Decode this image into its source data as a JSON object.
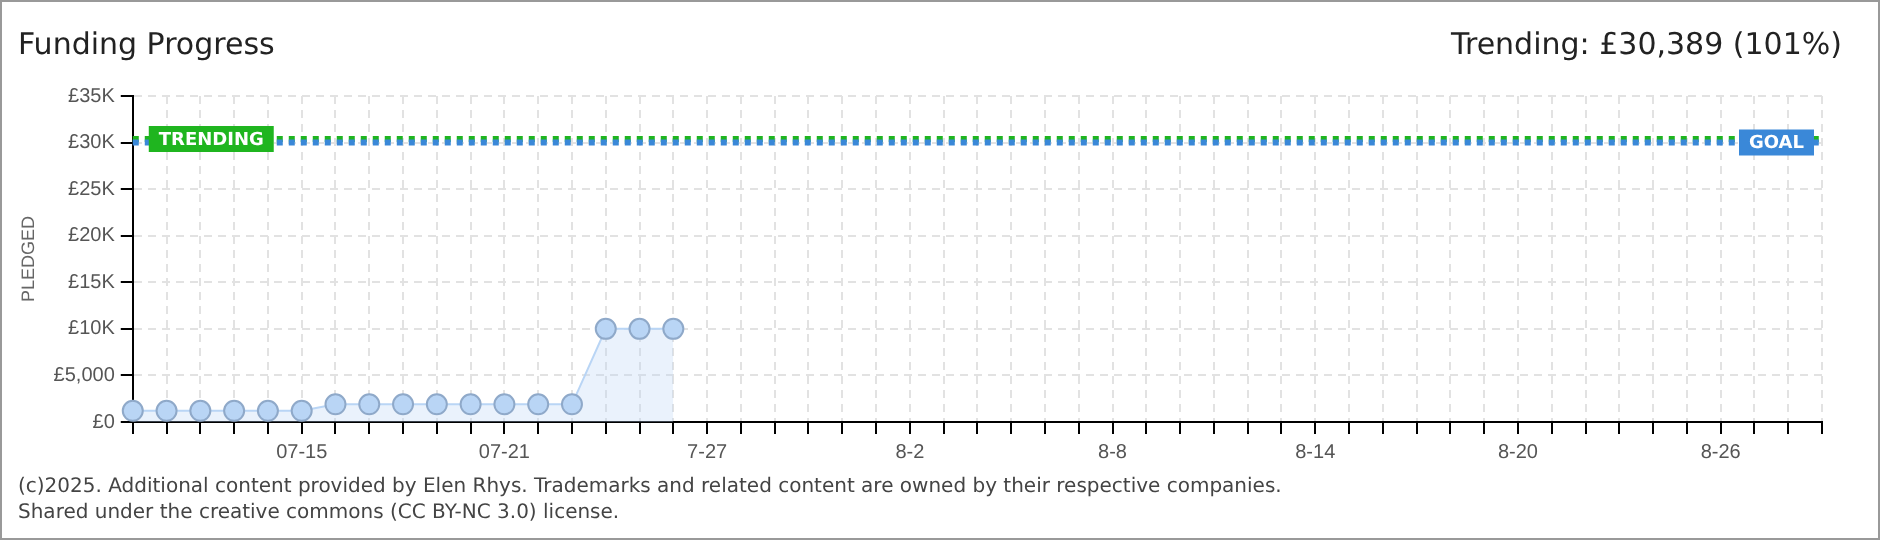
{
  "chart_data": {
    "type": "area",
    "title": "Funding Progress",
    "subtitle": "Trending: £30,389 (101%)",
    "ylabel": "PLEDGED",
    "categories": [
      null,
      null,
      null,
      null,
      null,
      "07-15",
      null,
      null,
      null,
      null,
      null,
      "07-21",
      null,
      null,
      null,
      null,
      null,
      "7-27",
      null,
      null,
      null,
      null,
      null,
      "8-2",
      null,
      null,
      null,
      null,
      null,
      "8-8",
      null,
      null,
      null,
      null,
      null,
      "8-14",
      null,
      null,
      null,
      null,
      null,
      "8-20",
      null,
      null,
      null,
      null,
      null,
      "8-26",
      null,
      null,
      null
    ],
    "series": [
      {
        "color": "#b9d5f5",
        "values": [
          1200,
          1200,
          1200,
          1200,
          1200,
          1200,
          1900,
          1900,
          1900,
          1900,
          1900,
          1900,
          1900,
          1900,
          10000,
          10000,
          10000,
          null,
          null,
          null,
          null,
          null,
          null,
          null,
          null,
          null,
          null,
          null,
          null,
          null,
          null,
          null,
          null,
          null,
          null,
          null,
          null,
          null,
          null,
          null,
          null,
          null,
          null,
          null,
          null,
          null,
          null,
          null,
          null,
          null,
          null
        ]
      }
    ],
    "ylim": [
      0,
      35000
    ],
    "yticks": [
      {
        "value": 0,
        "label": "£0"
      },
      {
        "value": 5000,
        "label": "£5,000"
      },
      {
        "value": 10000,
        "label": "£10K"
      },
      {
        "value": 15000,
        "label": "£15K"
      },
      {
        "value": 20000,
        "label": "£20K"
      },
      {
        "value": 25000,
        "label": "£25K"
      },
      {
        "value": 30000,
        "label": "£30K"
      },
      {
        "value": 35000,
        "label": "£35K"
      }
    ],
    "ref_lines": [
      {
        "axis": "y",
        "value": 30389,
        "label": "TRENDING",
        "color": "#1fb51f",
        "line_style": "dotted"
      },
      {
        "axis": "y",
        "value": 30000,
        "label": "GOAL",
        "color": "#3a88d8",
        "line_style": "dotted"
      }
    ],
    "grid": true,
    "legend": false,
    "marker": "circle",
    "annotations": [
      "(c)2025. Additional content provided by Elen Rhys. Trademarks and related content are owned by their respective companies.",
      "Shared under the creative commons (CC BY-NC 3.0) license."
    ]
  }
}
